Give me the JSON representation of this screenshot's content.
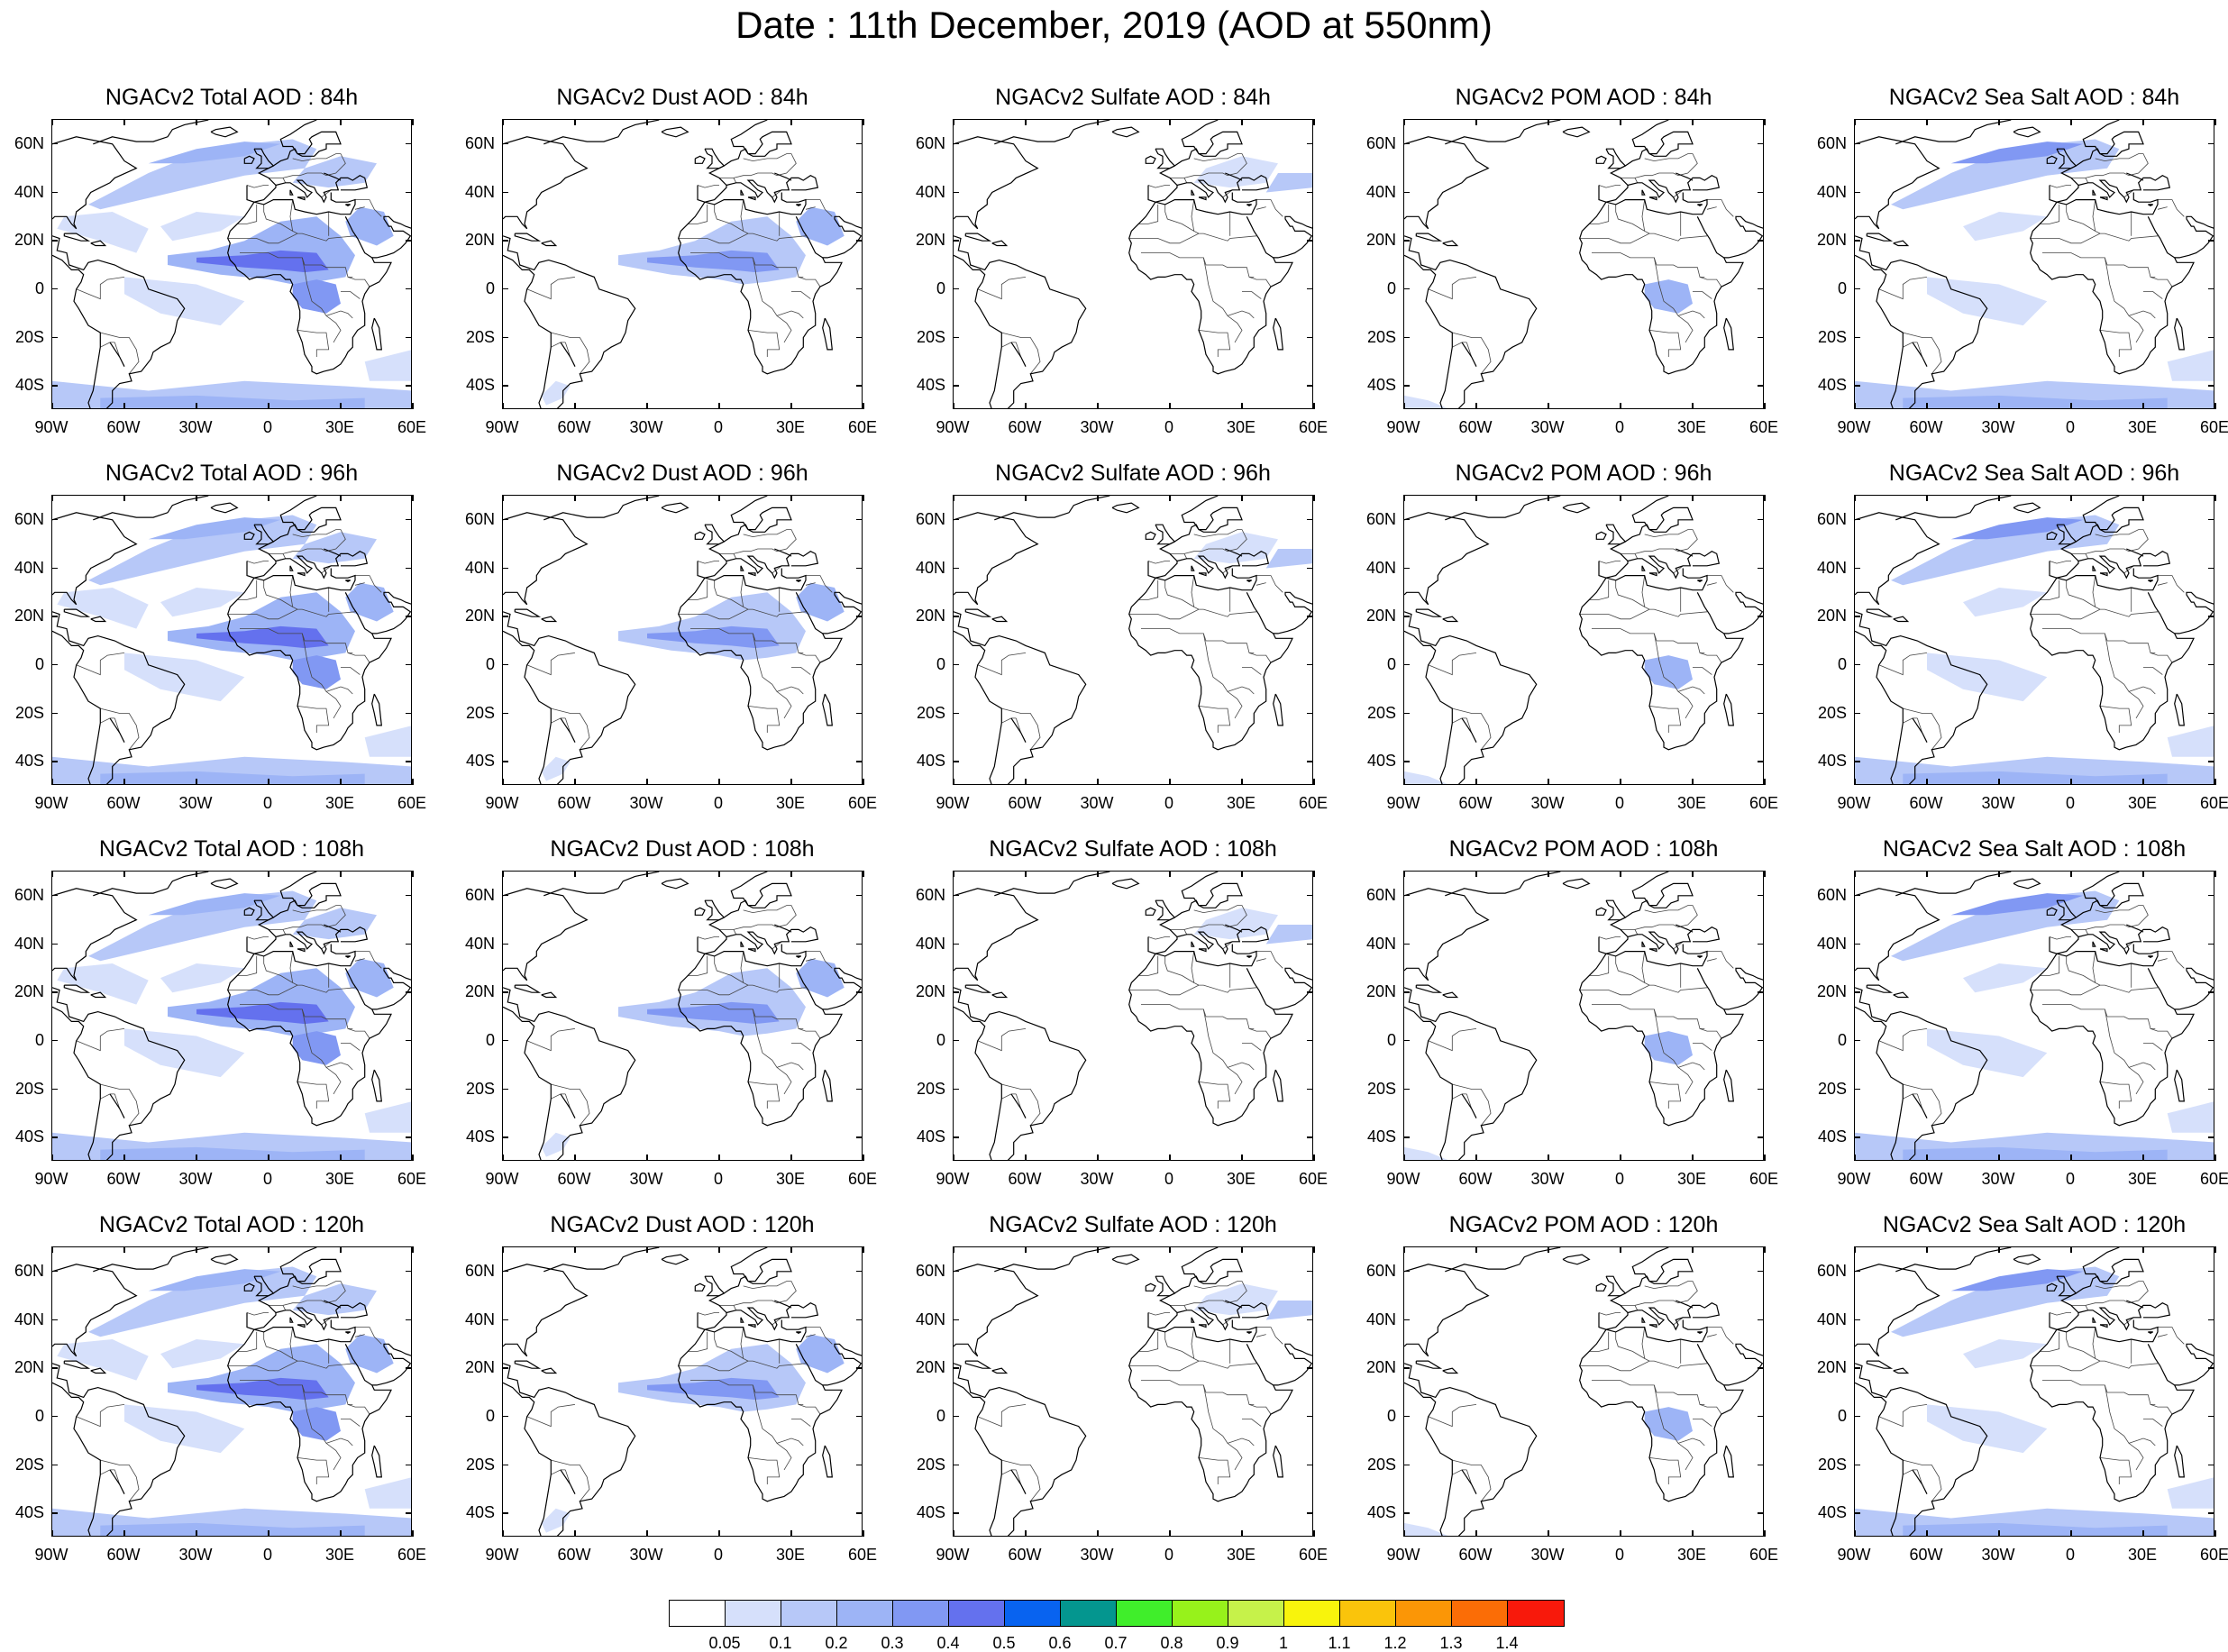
{
  "title": "Date : 11th December, 2019 (AOD at 550nm)",
  "grid": {
    "columns": [
      "total",
      "dust",
      "sulfate",
      "pom",
      "seasalt"
    ],
    "rows": [
      "84h",
      "96h",
      "108h",
      "120h"
    ]
  },
  "panels": [
    [
      "NGACv2 Total AOD : 84h",
      "NGACv2 Dust AOD : 84h",
      "NGACv2 Sulfate AOD : 84h",
      "NGACv2 POM AOD : 84h",
      "NGACv2 Sea Salt AOD : 84h"
    ],
    [
      "NGACv2 Total AOD : 96h",
      "NGACv2 Dust AOD : 96h",
      "NGACv2 Sulfate AOD : 96h",
      "NGACv2 POM AOD : 96h",
      "NGACv2 Sea Salt AOD : 96h"
    ],
    [
      "NGACv2 Total AOD : 108h",
      "NGACv2 Dust AOD : 108h",
      "NGACv2 Sulfate AOD : 108h",
      "NGACv2 POM AOD : 108h",
      "NGACv2 Sea Salt AOD : 108h"
    ],
    [
      "NGACv2 Total AOD : 120h",
      "NGACv2 Dust AOD : 120h",
      "NGACv2 Sulfate AOD : 120h",
      "NGACv2 POM AOD : 120h",
      "NGACv2 Sea Salt  AOD : 120h"
    ]
  ],
  "map_extent": {
    "lon_min": -90,
    "lon_max": 60,
    "lat_min": -50,
    "lat_max": 70
  },
  "lat_ticks": [
    {
      "value": 60,
      "label": "60N"
    },
    {
      "value": 40,
      "label": "40N"
    },
    {
      "value": 20,
      "label": "20N"
    },
    {
      "value": 0,
      "label": "0"
    },
    {
      "value": -20,
      "label": "20S"
    },
    {
      "value": -40,
      "label": "40S"
    }
  ],
  "lon_ticks": [
    {
      "value": -90,
      "label": "90W"
    },
    {
      "value": -60,
      "label": "60W"
    },
    {
      "value": -30,
      "label": "30W"
    },
    {
      "value": 0,
      "label": "0"
    },
    {
      "value": 30,
      "label": "30E"
    },
    {
      "value": 60,
      "label": "60E"
    }
  ],
  "colorbar": {
    "colors": [
      "#ffffff",
      "#d6e0fb",
      "#b7c8f8",
      "#9db4f6",
      "#8198f3",
      "#6471ee",
      "#0863f0",
      "#04968f",
      "#40ee2b",
      "#97f21b",
      "#c6f24a",
      "#f8f40c",
      "#fac40b",
      "#fb9606",
      "#fb6d06",
      "#f8190b"
    ],
    "labels": [
      "0.05",
      "0.1",
      "0.2",
      "0.3",
      "0.4",
      "0.5",
      "0.6",
      "0.7",
      "0.8",
      "0.9",
      "1",
      "1.1",
      "1.2",
      "1.3",
      "1.4"
    ]
  }
}
